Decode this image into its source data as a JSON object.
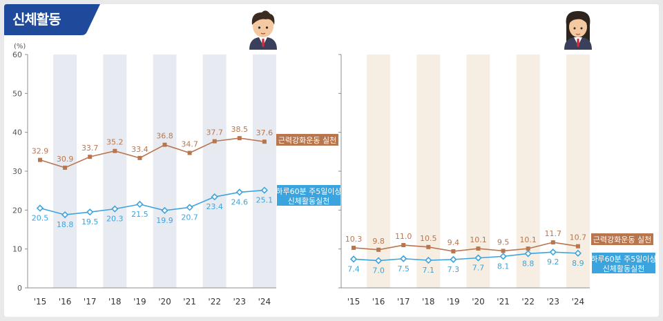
{
  "section_title": "신체활동",
  "colors": {
    "title_bg": "#1f4a9c",
    "strength": "#b8764f",
    "aerobic": "#3ba3dd",
    "male_band": "#e7ebf1",
    "female_band": "#f6eee2",
    "axis": "#8c8c8c"
  },
  "icons": {
    "male": "boy-student-icon",
    "female": "girl-student-icon"
  },
  "chart_data": [
    {
      "type": "line",
      "panel": "male",
      "ylabel": "(%)",
      "ylim": [
        0,
        60
      ],
      "yticks": [
        0,
        10,
        20,
        30,
        40,
        50,
        60
      ],
      "categories": [
        "'15",
        "'16",
        "'17",
        "'18",
        "'19",
        "'20",
        "'21",
        "'22",
        "'23",
        "'24"
      ],
      "shaded_years": [
        "'16",
        "'18",
        "'20",
        "'22",
        "'24"
      ],
      "series": [
        {
          "name": "근력강화운동 실천",
          "key": "strength",
          "marker": "square",
          "values": [
            32.9,
            30.9,
            33.7,
            35.2,
            33.4,
            36.8,
            34.7,
            37.7,
            38.5,
            37.6
          ],
          "labels": [
            "32.9",
            "30.9",
            "33.7",
            "35.2",
            "33.4",
            "36.8",
            "34.7",
            "37.7",
            "38.5",
            "37.6"
          ]
        },
        {
          "name_lines": [
            "하루60분 주5일이상",
            "신체활동실천"
          ],
          "key": "aerobic",
          "marker": "diamond",
          "values": [
            20.5,
            18.8,
            19.5,
            20.3,
            21.5,
            19.9,
            20.7,
            23.4,
            24.6,
            25.1
          ],
          "labels": [
            "20.5",
            "18.8",
            "19.5",
            "20.3",
            "21.5",
            "19.9",
            "20.7",
            "23.4",
            "24.6",
            "25.1"
          ]
        }
      ]
    },
    {
      "type": "line",
      "panel": "female",
      "ylim": [
        0,
        60
      ],
      "categories": [
        "'15",
        "'16",
        "'17",
        "'18",
        "'19",
        "'20",
        "'21",
        "'22",
        "'23",
        "'24"
      ],
      "shaded_years": [
        "'16",
        "'18",
        "'20",
        "'22",
        "'24"
      ],
      "series": [
        {
          "name": "근력강화운동 실천",
          "key": "strength",
          "marker": "square",
          "values": [
            10.3,
            9.8,
            11.0,
            10.5,
            9.4,
            10.1,
            9.5,
            10.1,
            11.7,
            10.7
          ],
          "labels": [
            "10.3",
            "9.8",
            "11.0",
            "10.5",
            "9.4",
            "10.1",
            "9.5",
            "10.1",
            "11.7",
            "10.7"
          ]
        },
        {
          "name_lines": [
            "하루60분 주5일이상",
            "신체활동실천"
          ],
          "key": "aerobic",
          "marker": "diamond",
          "values": [
            7.4,
            7.0,
            7.5,
            7.1,
            7.3,
            7.7,
            8.1,
            8.8,
            9.2,
            8.9
          ],
          "labels": [
            "7.4",
            "7.0",
            "7.5",
            "7.1",
            "7.3",
            "7.7",
            "8.1",
            "8.8",
            "9.2",
            "8.9"
          ]
        }
      ]
    }
  ]
}
